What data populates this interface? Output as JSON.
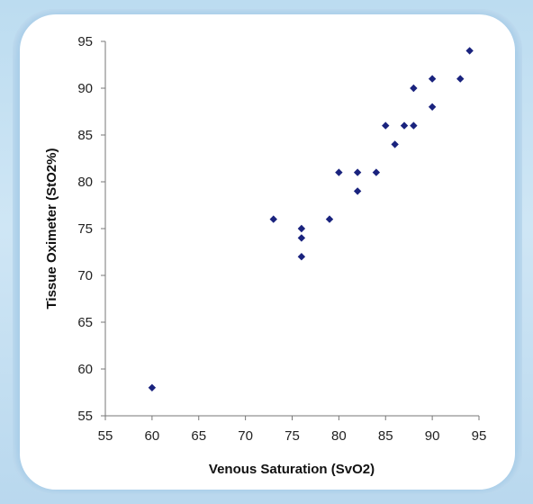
{
  "chart_data": {
    "type": "scatter",
    "title": "",
    "xlabel": "Venous Saturation (SvO2)",
    "ylabel": "Tissue Oximeter (StO2%)",
    "xlim": [
      55,
      95
    ],
    "ylim": [
      55,
      95
    ],
    "xticks": [
      55,
      60,
      65,
      70,
      75,
      80,
      85,
      90,
      95
    ],
    "yticks": [
      55,
      60,
      65,
      70,
      75,
      80,
      85,
      90,
      95
    ],
    "grid": false,
    "marker_color": "#1a237e",
    "points": [
      {
        "x": 60,
        "y": 58
      },
      {
        "x": 73,
        "y": 76
      },
      {
        "x": 76,
        "y": 75
      },
      {
        "x": 76,
        "y": 74
      },
      {
        "x": 76,
        "y": 72
      },
      {
        "x": 79,
        "y": 76
      },
      {
        "x": 80,
        "y": 81
      },
      {
        "x": 82,
        "y": 81
      },
      {
        "x": 82,
        "y": 79
      },
      {
        "x": 84,
        "y": 81
      },
      {
        "x": 85,
        "y": 86
      },
      {
        "x": 86,
        "y": 84
      },
      {
        "x": 87,
        "y": 86
      },
      {
        "x": 88,
        "y": 86
      },
      {
        "x": 88,
        "y": 90
      },
      {
        "x": 90,
        "y": 91
      },
      {
        "x": 90,
        "y": 88
      },
      {
        "x": 93,
        "y": 91
      },
      {
        "x": 94,
        "y": 94
      }
    ]
  }
}
